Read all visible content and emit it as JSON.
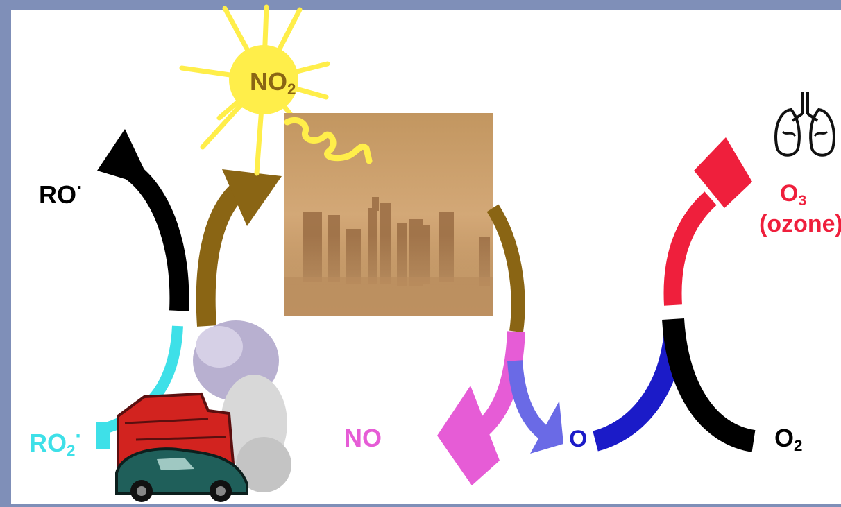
{
  "labels": {
    "ro": {
      "base": "RO",
      "sup": "·"
    },
    "ro2": {
      "base": "RO",
      "sub": "2",
      "sup": "·"
    },
    "no": {
      "base": "NO"
    },
    "no2": {
      "base": "NO",
      "sub": "2"
    },
    "o": {
      "base": "O"
    },
    "o2": {
      "base": "O",
      "sub": "2"
    },
    "o3": {
      "base": "O",
      "sub": "3"
    },
    "ozone": "(ozone)"
  },
  "colors": {
    "frame": "#7f8fb8",
    "panel": "#ffffff",
    "ro_arrow": "#000000",
    "ro2_label": "#3ee0e8",
    "no2_arrow": "#8a6514",
    "no_label": "#e65cd6",
    "o_arrow": "#1b1bc8",
    "o_branch": "#6a6ae6",
    "o2_arrow": "#000000",
    "o3_label": "#ef1f3c",
    "sun": "#ffee4a",
    "sun_text": "#8a6514",
    "smog": "#c49464"
  },
  "icons": [
    "sun-icon",
    "smog-city-image",
    "traffic-exhaust-image",
    "lungs-icon"
  ]
}
